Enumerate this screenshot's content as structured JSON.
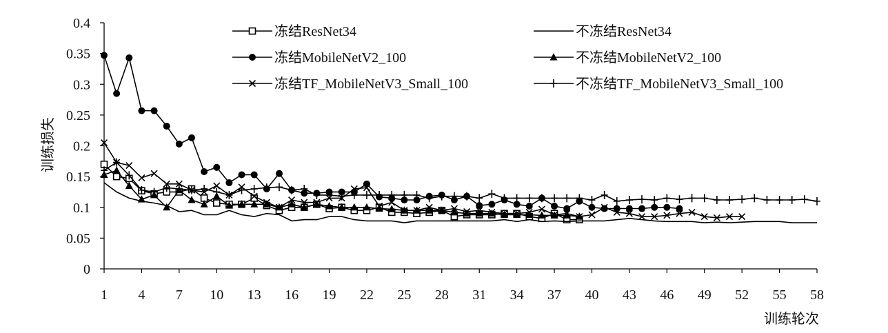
{
  "chart_data": {
    "type": "line",
    "title": "",
    "xlabel": "训练轮次",
    "ylabel": "训练损失",
    "xlim": [
      1,
      58
    ],
    "ylim": [
      0,
      0.4
    ],
    "x_ticks": [
      1,
      4,
      7,
      10,
      13,
      16,
      19,
      22,
      25,
      28,
      31,
      34,
      37,
      40,
      43,
      46,
      49,
      52,
      55,
      58
    ],
    "y_ticks": [
      0,
      0.05,
      0.1,
      0.15,
      0.2,
      0.25,
      0.3,
      0.35,
      0.4
    ],
    "y_tick_labels": [
      "0",
      "0.05",
      "0.1",
      "0.15",
      "0.2",
      "0.25",
      "0.3",
      "0.35",
      "0.4"
    ],
    "grid": false,
    "legend_position": "top",
    "series": [
      {
        "name": "冻结ResNet34",
        "marker": "square-open",
        "x": [
          1,
          2,
          3,
          4,
          5,
          6,
          7,
          8,
          9,
          10,
          11,
          12,
          13,
          14,
          15,
          16,
          17,
          18,
          19,
          20,
          21,
          22,
          23,
          24,
          25,
          26,
          27,
          28,
          29,
          30,
          31,
          32,
          33,
          34,
          35,
          36,
          37,
          38,
          39
        ],
        "values": [
          0.17,
          0.15,
          0.147,
          0.127,
          0.122,
          0.125,
          0.125,
          0.13,
          0.115,
          0.107,
          0.105,
          0.105,
          0.115,
          0.103,
          0.095,
          0.1,
          0.1,
          0.105,
          0.098,
          0.1,
          0.095,
          0.095,
          0.1,
          0.092,
          0.092,
          0.09,
          0.092,
          0.095,
          0.085,
          0.088,
          0.088,
          0.088,
          0.09,
          0.09,
          0.085,
          0.082,
          0.09,
          0.08,
          0.08
        ]
      },
      {
        "name": "不冻结ResNet34",
        "marker": "none",
        "x": [
          1,
          2,
          3,
          4,
          5,
          6,
          7,
          8,
          9,
          10,
          11,
          12,
          13,
          14,
          15,
          16,
          17,
          18,
          19,
          20,
          21,
          22,
          23,
          24,
          25,
          26,
          27,
          28,
          29,
          30,
          31,
          32,
          33,
          34,
          35,
          36,
          37,
          38,
          39,
          40,
          41,
          42,
          43,
          44,
          45,
          46,
          47,
          48,
          49,
          50,
          51,
          52,
          53,
          54,
          55,
          56,
          57,
          58
        ],
        "values": [
          0.14,
          0.125,
          0.115,
          0.11,
          0.107,
          0.103,
          0.093,
          0.095,
          0.088,
          0.088,
          0.095,
          0.088,
          0.085,
          0.09,
          0.088,
          0.078,
          0.08,
          0.08,
          0.085,
          0.085,
          0.08,
          0.078,
          0.078,
          0.078,
          0.075,
          0.078,
          0.078,
          0.078,
          0.078,
          0.078,
          0.078,
          0.078,
          0.08,
          0.077,
          0.08,
          0.077,
          0.078,
          0.077,
          0.078,
          0.078,
          0.078,
          0.08,
          0.082,
          0.08,
          0.078,
          0.077,
          0.077,
          0.077,
          0.075,
          0.076,
          0.075,
          0.076,
          0.077,
          0.077,
          0.077,
          0.075,
          0.075,
          0.075
        ]
      },
      {
        "name": "冻结MobileNetV2_100",
        "marker": "circle-filled",
        "x": [
          1,
          2,
          3,
          4,
          5,
          6,
          7,
          8,
          9,
          10,
          11,
          12,
          13,
          14,
          15,
          16,
          17,
          18,
          19,
          20,
          21,
          22,
          23,
          24,
          25,
          26,
          27,
          28,
          29,
          30,
          31,
          32,
          33,
          34,
          35,
          36,
          37,
          38,
          39,
          40,
          41,
          42,
          43,
          44,
          45,
          46,
          47
        ],
        "values": [
          0.347,
          0.285,
          0.343,
          0.257,
          0.257,
          0.232,
          0.203,
          0.213,
          0.158,
          0.165,
          0.14,
          0.153,
          0.153,
          0.13,
          0.155,
          0.128,
          0.123,
          0.123,
          0.125,
          0.125,
          0.125,
          0.138,
          0.117,
          0.115,
          0.112,
          0.112,
          0.118,
          0.12,
          0.112,
          0.118,
          0.103,
          0.105,
          0.112,
          0.105,
          0.102,
          0.115,
          0.102,
          0.098,
          0.11,
          0.1,
          0.098,
          0.098,
          0.098,
          0.098,
          0.1,
          0.1,
          0.098
        ]
      },
      {
        "name": "不冻结MobileNetV2_100",
        "marker": "triangle-filled",
        "x": [
          1,
          2,
          3,
          4,
          5,
          6,
          7,
          8,
          9,
          10,
          11,
          12,
          13,
          14,
          15,
          16,
          17,
          18,
          19,
          20,
          21,
          22,
          23,
          24,
          25,
          26,
          27,
          28,
          29,
          30,
          31,
          32,
          33,
          34,
          35,
          36,
          37,
          38,
          39
        ],
        "values": [
          0.153,
          0.16,
          0.135,
          0.113,
          0.12,
          0.1,
          0.128,
          0.112,
          0.105,
          0.118,
          0.103,
          0.105,
          0.105,
          0.105,
          0.1,
          0.105,
          0.1,
          0.105,
          0.102,
          0.1,
          0.1,
          0.1,
          0.098,
          0.097,
          0.095,
          0.095,
          0.095,
          0.095,
          0.092,
          0.09,
          0.09,
          0.09,
          0.088,
          0.088,
          0.088,
          0.087,
          0.087,
          0.087,
          0.085
        ]
      },
      {
        "name": "冻结TF_MobileNetV3_Small_100",
        "marker": "x",
        "x": [
          1,
          2,
          3,
          4,
          5,
          6,
          7,
          8,
          9,
          10,
          11,
          12,
          13,
          14,
          15,
          16,
          17,
          18,
          19,
          20,
          21,
          22,
          23,
          24,
          25,
          26,
          27,
          28,
          29,
          30,
          31,
          32,
          33,
          34,
          35,
          36,
          37,
          38,
          39,
          40,
          41,
          42,
          43,
          44,
          45,
          46,
          47,
          48,
          49,
          50,
          51,
          52
        ],
        "values": [
          0.205,
          0.173,
          0.168,
          0.148,
          0.155,
          0.138,
          0.138,
          0.128,
          0.125,
          0.135,
          0.12,
          0.133,
          0.118,
          0.108,
          0.1,
          0.112,
          0.108,
          0.108,
          0.115,
          0.115,
          0.13,
          0.132,
          0.102,
          0.108,
          0.095,
          0.095,
          0.1,
          0.095,
          0.098,
          0.093,
          0.095,
          0.092,
          0.09,
          0.09,
          0.092,
          0.097,
          0.088,
          0.09,
          0.085,
          0.088,
          0.1,
          0.092,
          0.09,
          0.085,
          0.085,
          0.087,
          0.09,
          0.092,
          0.085,
          0.083,
          0.085,
          0.085
        ]
      },
      {
        "name": "不冻结TF_MobileNetV3_Small_100",
        "marker": "plus",
        "x": [
          1,
          2,
          3,
          4,
          5,
          6,
          7,
          8,
          9,
          10,
          11,
          12,
          13,
          14,
          15,
          16,
          17,
          18,
          19,
          20,
          21,
          22,
          23,
          24,
          25,
          26,
          27,
          28,
          29,
          30,
          31,
          32,
          33,
          34,
          35,
          36,
          37,
          38,
          39,
          40,
          41,
          42,
          43,
          44,
          45,
          46,
          47,
          48,
          49,
          50,
          51,
          52,
          53,
          54,
          55,
          56,
          57,
          58
        ],
        "values": [
          0.16,
          0.173,
          0.152,
          0.128,
          0.125,
          0.132,
          0.13,
          0.128,
          0.13,
          0.125,
          0.12,
          0.128,
          0.13,
          0.132,
          0.133,
          0.128,
          0.13,
          0.12,
          0.12,
          0.118,
          0.12,
          0.12,
          0.12,
          0.12,
          0.12,
          0.12,
          0.115,
          0.118,
          0.118,
          0.118,
          0.115,
          0.122,
          0.115,
          0.115,
          0.115,
          0.115,
          0.115,
          0.115,
          0.115,
          0.112,
          0.12,
          0.11,
          0.112,
          0.113,
          0.112,
          0.115,
          0.113,
          0.115,
          0.115,
          0.112,
          0.112,
          0.113,
          0.115,
          0.112,
          0.112,
          0.112,
          0.113,
          0.11
        ]
      }
    ]
  }
}
